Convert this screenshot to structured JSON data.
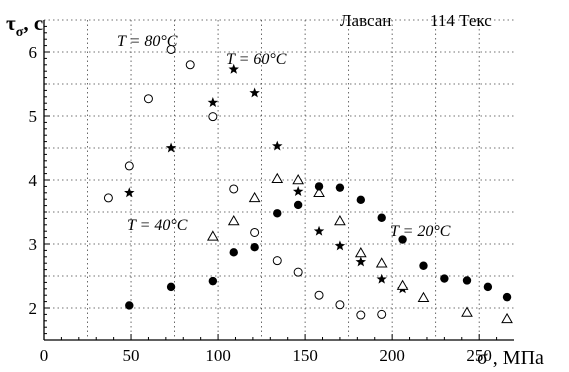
{
  "chart_data": {
    "type": "scatter",
    "ylabel": "τσ, с",
    "xlabel": "σ , МПа",
    "material": "Лавсан",
    "linear_density": "114 Текс",
    "xlim": [
      0,
      270
    ],
    "ylim": [
      1.5,
      6.5
    ],
    "x_ticks": [
      "0",
      "50",
      "100",
      "150",
      "200",
      "250"
    ],
    "y_ticks": [
      "2",
      "3",
      "4",
      "5",
      "6"
    ],
    "grid": "dotted",
    "series": [
      {
        "name": "T = 80°C",
        "marker": "open-circle",
        "points": [
          [
            37,
            3.72
          ],
          [
            49,
            4.22
          ],
          [
            60,
            5.27
          ],
          [
            73,
            6.04
          ],
          [
            84,
            5.8
          ],
          [
            97,
            4.99
          ],
          [
            109,
            3.86
          ],
          [
            121,
            3.18
          ],
          [
            134,
            2.74
          ],
          [
            146,
            2.56
          ],
          [
            158,
            2.2
          ],
          [
            170,
            2.05
          ],
          [
            182,
            1.89
          ],
          [
            194,
            1.9
          ]
        ]
      },
      {
        "name": "T = 60°C",
        "marker": "star",
        "points": [
          [
            49,
            3.8
          ],
          [
            73,
            4.5
          ],
          [
            97,
            5.21
          ],
          [
            109,
            5.73
          ],
          [
            121,
            5.36
          ],
          [
            134,
            4.53
          ],
          [
            146,
            3.82
          ],
          [
            158,
            3.2
          ],
          [
            170,
            2.97
          ],
          [
            182,
            2.72
          ],
          [
            194,
            2.45
          ],
          [
            206,
            2.3
          ]
        ]
      },
      {
        "name": "T = 40°C",
        "marker": "open-triangle",
        "points": [
          [
            97,
            3.12
          ],
          [
            109,
            3.36
          ],
          [
            121,
            3.72
          ],
          [
            134,
            4.02
          ],
          [
            146,
            4.0
          ],
          [
            158,
            3.8
          ],
          [
            170,
            3.36
          ],
          [
            182,
            2.86
          ],
          [
            194,
            2.7
          ],
          [
            206,
            2.35
          ],
          [
            218,
            2.16
          ],
          [
            243,
            1.93
          ],
          [
            266,
            1.83
          ]
        ]
      },
      {
        "name": "T = 20°C",
        "marker": "filled-circle",
        "points": [
          [
            49,
            2.04
          ],
          [
            73,
            2.33
          ],
          [
            97,
            2.42
          ],
          [
            109,
            2.87
          ],
          [
            121,
            2.95
          ],
          [
            134,
            3.48
          ],
          [
            146,
            3.61
          ],
          [
            158,
            3.9
          ],
          [
            170,
            3.88
          ],
          [
            182,
            3.69
          ],
          [
            194,
            3.41
          ],
          [
            206,
            3.07
          ],
          [
            218,
            2.66
          ],
          [
            230,
            2.46
          ],
          [
            243,
            2.43
          ],
          [
            255,
            2.33
          ],
          [
            266,
            2.17
          ]
        ]
      }
    ]
  }
}
